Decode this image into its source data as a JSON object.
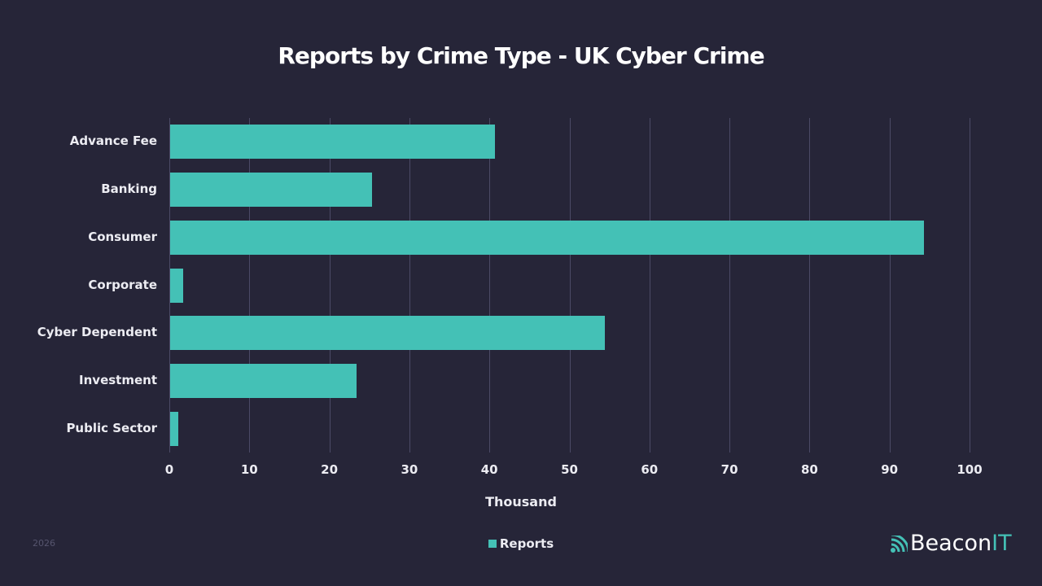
{
  "header": {
    "title": "Reports by Crime Type - UK Cyber Crime"
  },
  "footer": {
    "year": "2026",
    "logo_text": "Beacon",
    "logo_accent": "IT"
  },
  "colors": {
    "background": "#262538",
    "bar": "#44c1b6",
    "grid": "#4b4a66",
    "text": "#ececf2"
  },
  "chart_data": {
    "type": "bar",
    "orientation": "horizontal",
    "title": "Reports by Crime Type - UK Cyber Crime",
    "xlabel": "Thousand",
    "ylabel": "",
    "categories": [
      "Advance Fee",
      "Banking",
      "Consumer",
      "Corporate",
      "Cyber Dependent",
      "Investment",
      "Public Sector"
    ],
    "series": [
      {
        "name": "Reports",
        "color": "#44c1b6",
        "values": [
          40.6,
          25.2,
          94.2,
          1.6,
          54.3,
          23.3,
          1.0
        ]
      }
    ],
    "xlim": [
      0,
      100
    ],
    "xticks": [
      "0",
      "10",
      "20",
      "30",
      "40",
      "50",
      "60",
      "70",
      "80",
      "90",
      "100"
    ],
    "grid": true,
    "legend": {
      "position": "bottom",
      "entries": [
        "Reports"
      ]
    }
  }
}
